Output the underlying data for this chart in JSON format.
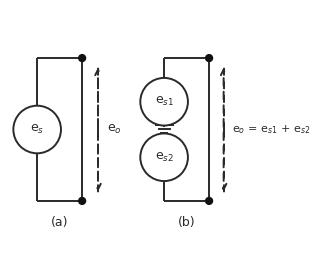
{
  "bg_color": "#ffffff",
  "line_color": "#2a2a2a",
  "dot_color": "#111111",
  "circle_color": "#ffffff",
  "circle_edge": "#2a2a2a",
  "label_a": "(a)",
  "label_b": "(b)",
  "label_es": "e$_s$",
  "label_es1": "e$_{s1}$",
  "label_es2": "e$_{s2}$",
  "label_eo_a": "e$_o$",
  "label_eo_b": "e$_o$ = e$_{s1}$ + e$_{s2}$",
  "fig_width": 3.12,
  "fig_height": 2.59,
  "dpi": 100
}
